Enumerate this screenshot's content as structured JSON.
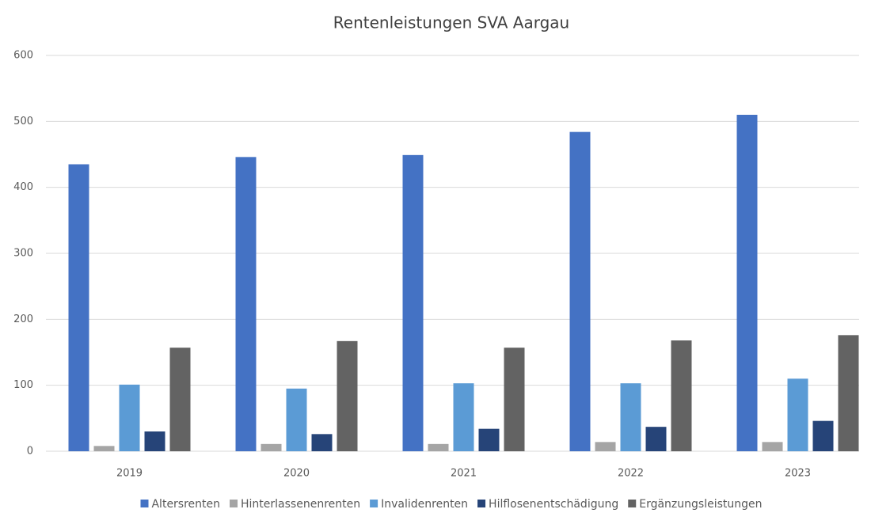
{
  "chart_data": {
    "type": "bar",
    "title": "Rentenleistungen SVA Aargau",
    "categories": [
      "2019",
      "2020",
      "2021",
      "2022",
      "2023"
    ],
    "series": [
      {
        "name": "Altersrenten",
        "color": "#4472c4",
        "values": [
          435,
          446,
          449,
          484,
          510
        ]
      },
      {
        "name": "Hinterlassenenrenten",
        "color": "#a5a5a5",
        "values": [
          8,
          11,
          11,
          14,
          14
        ]
      },
      {
        "name": "Invalidenrenten",
        "color": "#5b9bd5",
        "values": [
          101,
          95,
          103,
          103,
          110
        ]
      },
      {
        "name": "Hilflosenentschädigung",
        "color": "#264478",
        "values": [
          30,
          26,
          34,
          37,
          46
        ]
      },
      {
        "name": "Ergänzungsleistungen",
        "color": "#636363",
        "values": [
          157,
          167,
          157,
          168,
          176
        ]
      }
    ],
    "ylim": [
      0,
      600
    ],
    "yticks": [
      0,
      100,
      200,
      300,
      400,
      500,
      600
    ],
    "grid": true,
    "legend": "bottom"
  }
}
